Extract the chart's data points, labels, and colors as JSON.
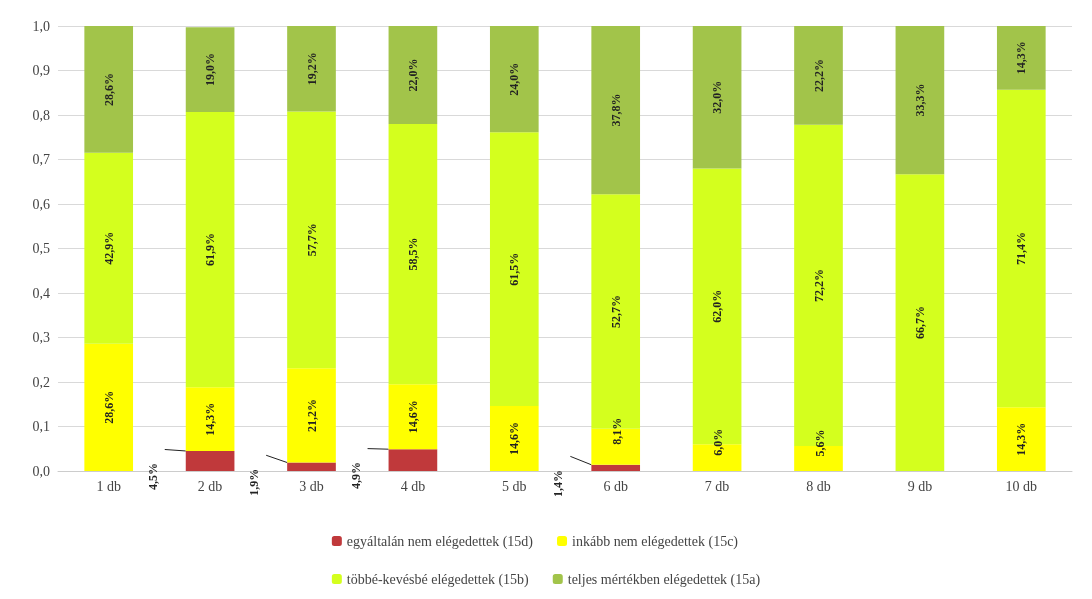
{
  "chart_data": {
    "type": "bar",
    "stacked": true,
    "categories": [
      "1 db",
      "2 db",
      "3 db",
      "4 db",
      "5 db",
      "6 db",
      "7 db",
      "8 db",
      "9 db",
      "10 db"
    ],
    "series": [
      {
        "name": "egyáltalán nem elégedettek (15d)",
        "color": "#c0393b",
        "values": [
          0,
          0.045,
          0.019,
          0.049,
          0,
          0.014,
          0,
          0,
          0,
          0
        ],
        "value_labels": [
          null,
          "4,5%",
          "1,9%",
          "4,9%",
          null,
          "1,4%",
          null,
          null,
          null,
          null
        ]
      },
      {
        "name": "inkább nem elégedettek (15c)",
        "color": "#ffff00",
        "values": [
          0.286,
          0.143,
          0.212,
          0.146,
          0.146,
          0.081,
          0.06,
          0.056,
          0,
          0.143
        ],
        "value_labels": [
          "28,6%",
          "14,3%",
          "21,2%",
          "14,6%",
          "14,6%",
          "8,1%",
          "6,0%",
          "5,6%",
          null,
          "14,3%"
        ]
      },
      {
        "name": "többé-kevésbé elégedettek (15b)",
        "color": "#d4ff1e",
        "values": [
          0.429,
          0.619,
          0.577,
          0.585,
          0.615,
          0.527,
          0.62,
          0.722,
          0.667,
          0.714
        ],
        "value_labels": [
          "42,9%",
          "61,9%",
          "57,7%",
          "58,5%",
          "61,5%",
          "52,7%",
          "62,0%",
          "72,2%",
          "66,7%",
          "71,4%"
        ]
      },
      {
        "name": "teljes mértékben elégedettek (15a)",
        "color": "#a2c44a",
        "values": [
          0.286,
          0.19,
          0.192,
          0.22,
          0.24,
          0.378,
          0.32,
          0.222,
          0.333,
          0.143
        ],
        "value_labels": [
          "28,6%",
          "19,0%",
          "19,2%",
          "22,0%",
          "24,0%",
          "37,8%",
          "32,0%",
          "22,2%",
          "33,3%",
          "14,3%"
        ]
      }
    ],
    "ylim": [
      0,
      1
    ],
    "yticks": [
      {
        "value": 0,
        "label": "0,0"
      },
      {
        "value": 0.1,
        "label": "0,1"
      },
      {
        "value": 0.2,
        "label": "0,2"
      },
      {
        "value": 0.3,
        "label": "0,3"
      },
      {
        "value": 0.4,
        "label": "0,4"
      },
      {
        "value": 0.5,
        "label": "0,5"
      },
      {
        "value": 0.6,
        "label": "0,6"
      },
      {
        "value": 0.7,
        "label": "0,7"
      },
      {
        "value": 0.8,
        "label": "0,8"
      },
      {
        "value": 0.9,
        "label": "0,9"
      },
      {
        "value": 1,
        "label": "1,0"
      }
    ],
    "grid": "y",
    "legend": "bottom"
  }
}
